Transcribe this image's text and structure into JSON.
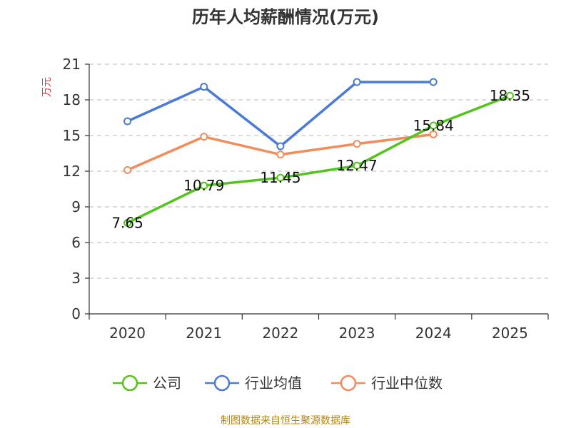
{
  "chart_data": {
    "type": "line",
    "title": "历年人均薪酬情况(万元)",
    "ylabel": "万元",
    "xlabel": "",
    "categories": [
      "2020",
      "2021",
      "2022",
      "2023",
      "2024",
      "2025"
    ],
    "ylim": [
      0,
      21
    ],
    "yticks": [
      0,
      3,
      6,
      9,
      12,
      15,
      18,
      21
    ],
    "grid": true,
    "legend_position": "bottom",
    "series": [
      {
        "name": "公司",
        "color": "#52c41a",
        "values": [
          7.65,
          10.79,
          11.45,
          12.47,
          15.84,
          18.35
        ],
        "labels": [
          "7.65",
          "10.79",
          "11.45",
          "12.47",
          "15.84",
          "18.35"
        ]
      },
      {
        "name": "行业均值",
        "color": "#4a7bd6",
        "values": [
          16.2,
          19.1,
          14.1,
          19.5,
          19.5,
          null
        ]
      },
      {
        "name": "行业中位数",
        "color": "#f28c5a",
        "values": [
          12.1,
          14.9,
          13.4,
          14.3,
          15.1,
          null
        ]
      }
    ]
  },
  "source_note": "制图数据来自恒生聚源数据库"
}
